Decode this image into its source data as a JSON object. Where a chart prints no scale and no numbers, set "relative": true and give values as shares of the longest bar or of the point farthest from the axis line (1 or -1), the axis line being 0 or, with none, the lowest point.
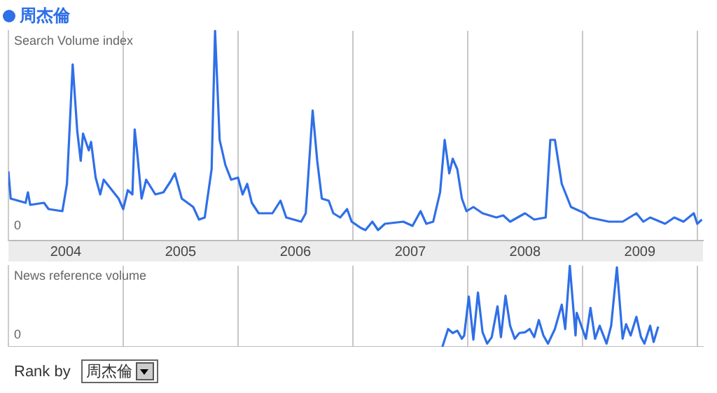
{
  "chart_data": [
    {
      "type": "line",
      "title": "Search Volume index",
      "relative": true,
      "legend": "top left",
      "grid": "x",
      "marker": "none",
      "line_style": "solid",
      "annotations": [
        "0"
      ],
      "xlim": [
        2004,
        2010.05
      ],
      "xticks": [
        {
          "value": 2004,
          "label": null
        },
        {
          "value": 2004.5,
          "label": "2004"
        },
        {
          "value": 2005,
          "label": null
        },
        {
          "value": 2005.5,
          "label": "2005"
        },
        {
          "value": 2006,
          "label": null
        },
        {
          "value": 2006.5,
          "label": "2006"
        },
        {
          "value": 2007,
          "label": null
        },
        {
          "value": 2007.5,
          "label": "2007"
        },
        {
          "value": 2008,
          "label": null
        },
        {
          "value": 2008.5,
          "label": "2008"
        },
        {
          "value": 2009,
          "label": null
        },
        {
          "value": 2009.5,
          "label": "2009"
        },
        {
          "value": 2010,
          "label": null
        }
      ],
      "series": [
        {
          "name": "周杰倫",
          "color": "#2f6fe8",
          "x": [
            2004.0,
            2004.02,
            2004.15,
            2004.17,
            2004.19,
            2004.31,
            2004.35,
            2004.47,
            2004.51,
            2004.56,
            2004.6,
            2004.63,
            2004.65,
            2004.7,
            2004.72,
            2004.76,
            2004.8,
            2004.83,
            2004.96,
            2005.0,
            2005.04,
            2005.08,
            2005.1,
            2005.12,
            2005.16,
            2005.2,
            2005.28,
            2005.35,
            2005.41,
            2005.45,
            2005.51,
            2005.61,
            2005.66,
            2005.71,
            2005.77,
            2005.8,
            2005.84,
            2005.89,
            2005.94,
            2006.0,
            2006.04,
            2006.08,
            2006.12,
            2006.18,
            2006.3,
            2006.37,
            2006.42,
            2006.55,
            2006.59,
            2006.65,
            2006.69,
            2006.73,
            2006.79,
            2006.83,
            2006.89,
            2006.95,
            2006.99,
            2007.07,
            2007.11,
            2007.17,
            2007.22,
            2007.28,
            2007.44,
            2007.52,
            2007.59,
            2007.64,
            2007.7,
            2007.76,
            2007.8,
            2007.84,
            2007.87,
            2007.91,
            2007.95,
            2007.99,
            2008.05,
            2008.13,
            2008.25,
            2008.31,
            2008.37,
            2008.5,
            2008.58,
            2008.68,
            2008.72,
            2008.76,
            2008.82,
            2008.9,
            2008.98,
            2009.02,
            2009.06,
            2009.23,
            2009.35,
            2009.47,
            2009.53,
            2009.59,
            2009.72,
            2009.8,
            2009.88,
            2009.97,
            2010.0,
            2010.04
          ],
          "values": [
            0.33,
            0.2,
            0.18,
            0.23,
            0.17,
            0.18,
            0.15,
            0.14,
            0.27,
            0.84,
            0.52,
            0.38,
            0.51,
            0.43,
            0.47,
            0.3,
            0.22,
            0.29,
            0.2,
            0.15,
            0.24,
            0.22,
            0.53,
            0.43,
            0.2,
            0.29,
            0.22,
            0.23,
            0.28,
            0.32,
            0.2,
            0.16,
            0.1,
            0.11,
            0.34,
            1.0,
            0.48,
            0.36,
            0.29,
            0.3,
            0.22,
            0.27,
            0.18,
            0.13,
            0.13,
            0.19,
            0.11,
            0.09,
            0.13,
            0.62,
            0.38,
            0.2,
            0.19,
            0.13,
            0.11,
            0.15,
            0.09,
            0.06,
            0.05,
            0.09,
            0.05,
            0.08,
            0.09,
            0.07,
            0.14,
            0.08,
            0.09,
            0.23,
            0.48,
            0.32,
            0.39,
            0.34,
            0.2,
            0.14,
            0.16,
            0.13,
            0.11,
            0.12,
            0.09,
            0.13,
            0.1,
            0.11,
            0.48,
            0.48,
            0.27,
            0.16,
            0.14,
            0.13,
            0.11,
            0.09,
            0.09,
            0.13,
            0.09,
            0.11,
            0.08,
            0.11,
            0.09,
            0.13,
            0.08,
            0.1
          ]
        }
      ]
    },
    {
      "type": "line",
      "title": "News reference volume",
      "relative": true,
      "grid": "x",
      "marker": "none",
      "line_style": "solid",
      "tick_labels": false,
      "annotations": [
        "0",
        "Rank by",
        "周杰倫"
      ],
      "xlim": [
        2004,
        2010.05
      ],
      "xticks": [
        {
          "value": 2004,
          "label": null
        },
        {
          "value": 2005,
          "label": null
        },
        {
          "value": 2006,
          "label": null
        },
        {
          "value": 2007,
          "label": null
        },
        {
          "value": 2008,
          "label": null
        },
        {
          "value": 2009,
          "label": null
        },
        {
          "value": 2010,
          "label": null
        }
      ],
      "series": [
        {
          "color": "#2f6fe8",
          "x": [
            2007.78,
            2007.83,
            2007.87,
            2007.91,
            2007.95,
            2007.97,
            2008.01,
            2008.05,
            2008.09,
            2008.13,
            2008.17,
            2008.21,
            2008.26,
            2008.29,
            2008.33,
            2008.37,
            2008.41,
            2008.45,
            2008.5,
            2008.54,
            2008.58,
            2008.62,
            2008.66,
            2008.7,
            2008.76,
            2008.82,
            2008.85,
            2008.89,
            2008.94,
            2008.95,
            2009.0,
            2009.03,
            2009.07,
            2009.11,
            2009.15,
            2009.21,
            2009.25,
            2009.3,
            2009.35,
            2009.38,
            2009.42,
            2009.47,
            2009.51,
            2009.54,
            2009.59,
            2009.62,
            2009.66
          ],
          "values": [
            0,
            0.22,
            0.17,
            0.2,
            0.1,
            0.14,
            0.62,
            0.09,
            0.67,
            0.18,
            0.04,
            0.12,
            0.5,
            0.12,
            0.63,
            0.26,
            0.1,
            0.17,
            0.18,
            0.22,
            0.12,
            0.33,
            0.14,
            0.04,
            0.22,
            0.52,
            0.22,
            1.0,
            0.14,
            0.42,
            0.22,
            0.1,
            0.48,
            0.1,
            0.26,
            0.04,
            0.26,
            0.98,
            0.1,
            0.28,
            0.14,
            0.37,
            0.12,
            0.04,
            0.26,
            0.06,
            0.25
          ]
        }
      ]
    }
  ]
}
